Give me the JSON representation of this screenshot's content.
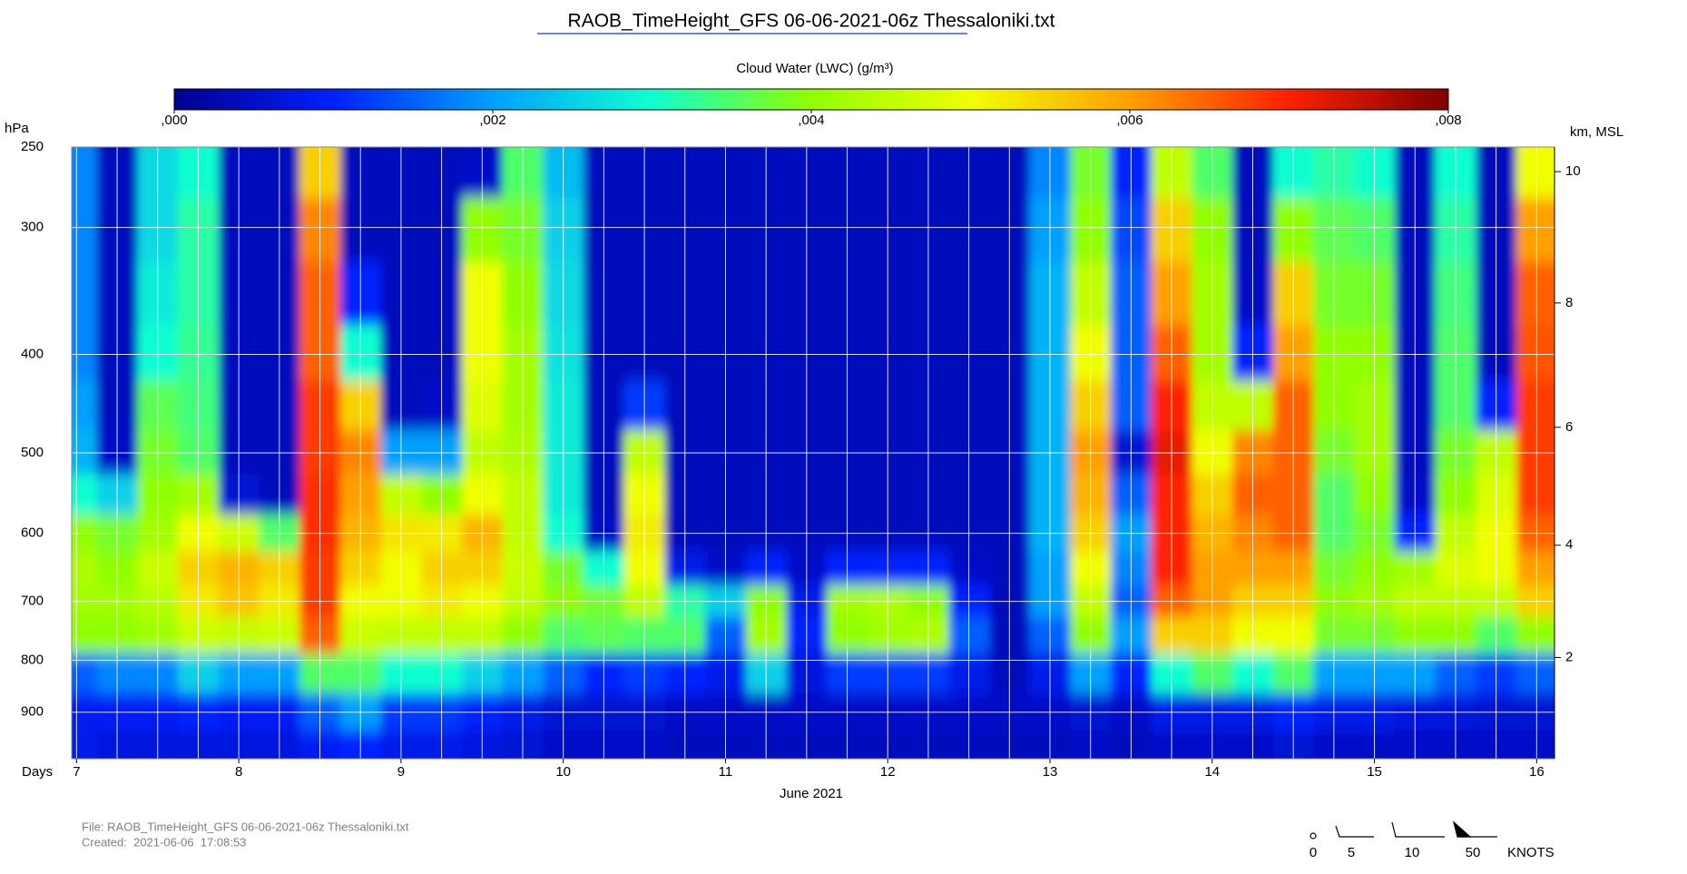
{
  "chart_data": {
    "type": "heatmap",
    "title": "RAOB_TimeHeight_GFS 06-06-2021-06z Thessaloniki.txt",
    "colorbar_label": "Cloud Water (LWC) (g/m³)",
    "clim": [
      0,
      0.008
    ],
    "cticks": [
      {
        "value": 0,
        "label": ",000"
      },
      {
        "value": 0.002,
        "label": ",002"
      },
      {
        "value": 0.004,
        "label": ",004"
      },
      {
        "value": 0.006,
        "label": ",006"
      },
      {
        "value": 0.008,
        "label": ",008"
      }
    ],
    "colormap": [
      "#00008f",
      "#0020ff",
      "#00a0ff",
      "#10ffd0",
      "#90ff00",
      "#f0ff00",
      "#ffa000",
      "#ff2000",
      "#800000"
    ],
    "ylabel": "hPa",
    "y_log": true,
    "ylim": [
      250,
      1000
    ],
    "yticks": [
      250,
      300,
      400,
      500,
      600,
      700,
      800,
      900
    ],
    "y2label": "km, MSL",
    "y2ticks": [
      2,
      4,
      6,
      8,
      10
    ],
    "xlabel": "Days",
    "xsublabel": "June 2021",
    "xlim": [
      6.97,
      16.11
    ],
    "xticks": [
      7,
      8,
      9,
      10,
      11,
      12,
      13,
      14,
      15,
      16
    ],
    "grid": true,
    "x": [
      7,
      7.25,
      7.5,
      7.75,
      8,
      8.25,
      8.5,
      8.75,
      9,
      9.25,
      9.5,
      9.75,
      10,
      10.25,
      10.5,
      10.75,
      11,
      11.25,
      11.5,
      11.75,
      12,
      12.25,
      12.5,
      12.75,
      13,
      13.25,
      13.5,
      13.75,
      14,
      14.25,
      14.5,
      14.75,
      15,
      15.25,
      15.5,
      15.75,
      16
    ],
    "y": [
      975,
      900,
      825,
      750,
      700,
      650,
      600,
      550,
      500,
      450,
      400,
      350,
      300,
      262
    ],
    "z": [
      [
        0.0008,
        0.0009,
        0.0015,
        0.004,
        0.0042,
        0.0043,
        0.004,
        0.003,
        0.0022,
        0.002,
        0.0018,
        0.0018,
        0.0018,
        0.0018
      ],
      [
        0.0007,
        0.0009,
        0.0018,
        0.004,
        0.0042,
        0.004,
        0.0038,
        0.0025,
        0.0005,
        0.0004,
        0.0004,
        0.0004,
        0.0004,
        0.0004
      ],
      [
        0.0007,
        0.0009,
        0.0018,
        0.0042,
        0.0044,
        0.0046,
        0.0042,
        0.004,
        0.0038,
        0.0036,
        0.003,
        0.0028,
        0.0026,
        0.0026
      ],
      [
        0.0007,
        0.001,
        0.0025,
        0.0046,
        0.0052,
        0.0055,
        0.005,
        0.0042,
        0.0035,
        0.0034,
        0.0033,
        0.0032,
        0.0032,
        0.003
      ],
      [
        0.0007,
        0.0009,
        0.002,
        0.0045,
        0.0056,
        0.0058,
        0.0046,
        0.0006,
        0.0004,
        0.0004,
        0.0004,
        0.0004,
        0.0004,
        0.0004
      ],
      [
        0.0007,
        0.0009,
        0.002,
        0.0046,
        0.0052,
        0.0055,
        0.0035,
        0.0004,
        0.0004,
        0.0004,
        0.0004,
        0.0004,
        0.0004,
        0.0004
      ],
      [
        0.0009,
        0.0015,
        0.0035,
        0.0065,
        0.0068,
        0.0068,
        0.0069,
        0.0069,
        0.0068,
        0.0068,
        0.0065,
        0.0065,
        0.0062,
        0.0055
      ],
      [
        0.001,
        0.002,
        0.0035,
        0.0046,
        0.005,
        0.0055,
        0.0058,
        0.006,
        0.0062,
        0.0055,
        0.003,
        0.001,
        0.0004,
        0.0004
      ],
      [
        0.0008,
        0.0012,
        0.003,
        0.0045,
        0.005,
        0.005,
        0.0053,
        0.0045,
        0.002,
        0.0004,
        0.0004,
        0.0004,
        0.0004,
        0.0004
      ],
      [
        0.0008,
        0.0012,
        0.003,
        0.0045,
        0.0052,
        0.0055,
        0.0052,
        0.004,
        0.002,
        0.0005,
        0.0004,
        0.0004,
        0.0004,
        0.0004
      ],
      [
        0.0007,
        0.001,
        0.0025,
        0.0045,
        0.005,
        0.0055,
        0.0058,
        0.005,
        0.0045,
        0.0048,
        0.005,
        0.005,
        0.004,
        0.0005
      ],
      [
        0.0006,
        0.0008,
        0.002,
        0.004,
        0.0045,
        0.0046,
        0.0045,
        0.0045,
        0.0043,
        0.0042,
        0.0042,
        0.004,
        0.0038,
        0.0035
      ],
      [
        0.0005,
        0.0006,
        0.0015,
        0.0035,
        0.004,
        0.0038,
        0.003,
        0.0028,
        0.0028,
        0.0028,
        0.0027,
        0.0026,
        0.0025,
        0.0023
      ],
      [
        0.0005,
        0.0006,
        0.001,
        0.0036,
        0.0038,
        0.003,
        0.0005,
        0.0004,
        0.0004,
        0.0004,
        0.0004,
        0.0004,
        0.0004,
        0.0004
      ],
      [
        0.0005,
        0.0006,
        0.0012,
        0.0035,
        0.0045,
        0.005,
        0.0052,
        0.005,
        0.0045,
        0.0012,
        0.0004,
        0.0004,
        0.0004,
        0.0004
      ],
      [
        0.0004,
        0.0005,
        0.001,
        0.0035,
        0.0032,
        0.0008,
        0.0004,
        0.0004,
        0.0004,
        0.0004,
        0.0004,
        0.0004,
        0.0004,
        0.0004
      ],
      [
        0.0004,
        0.0005,
        0.0008,
        0.0015,
        0.0025,
        0.0005,
        0.0004,
        0.0004,
        0.0004,
        0.0004,
        0.0004,
        0.0004,
        0.0004,
        0.0004
      ],
      [
        0.0004,
        0.0005,
        0.0025,
        0.0042,
        0.004,
        0.001,
        0.0004,
        0.0004,
        0.0004,
        0.0004,
        0.0004,
        0.0004,
        0.0004,
        0.0004
      ],
      [
        0.0004,
        0.0005,
        0.0007,
        0.001,
        0.0008,
        0.0005,
        0.0004,
        0.0004,
        0.0004,
        0.0004,
        0.0004,
        0.0004,
        0.0004,
        0.0004
      ],
      [
        0.0004,
        0.0005,
        0.0012,
        0.004,
        0.0042,
        0.001,
        0.0004,
        0.0004,
        0.0004,
        0.0004,
        0.0004,
        0.0004,
        0.0004,
        0.0004
      ],
      [
        0.0004,
        0.0005,
        0.0012,
        0.0042,
        0.0043,
        0.001,
        0.0004,
        0.0004,
        0.0004,
        0.0004,
        0.0004,
        0.0004,
        0.0004,
        0.0004
      ],
      [
        0.0004,
        0.0005,
        0.0012,
        0.0043,
        0.004,
        0.001,
        0.0004,
        0.0004,
        0.0004,
        0.0004,
        0.0004,
        0.0004,
        0.0004,
        0.0004
      ],
      [
        0.0004,
        0.0005,
        0.0008,
        0.0015,
        0.001,
        0.0005,
        0.0004,
        0.0004,
        0.0004,
        0.0004,
        0.0004,
        0.0004,
        0.0004,
        0.0004
      ],
      [
        0.0004,
        0.0005,
        0.0004,
        0.0004,
        0.0004,
        0.0004,
        0.0004,
        0.0004,
        0.0004,
        0.0004,
        0.0004,
        0.0004,
        0.0004,
        0.0004
      ],
      [
        0.0004,
        0.0005,
        0.0008,
        0.0015,
        0.002,
        0.002,
        0.0022,
        0.0022,
        0.0022,
        0.0022,
        0.0022,
        0.0022,
        0.002,
        0.0018
      ],
      [
        0.0005,
        0.0006,
        0.002,
        0.004,
        0.0045,
        0.005,
        0.0055,
        0.0058,
        0.006,
        0.0055,
        0.005,
        0.0045,
        0.004,
        0.0038
      ],
      [
        0.0004,
        0.0005,
        0.001,
        0.002,
        0.0015,
        0.0018,
        0.002,
        0.0015,
        0.0006,
        0.0015,
        0.0015,
        0.0015,
        0.0013,
        0.001
      ],
      [
        0.0005,
        0.0008,
        0.003,
        0.0055,
        0.0065,
        0.007,
        0.007,
        0.007,
        0.0072,
        0.007,
        0.0065,
        0.006,
        0.0055,
        0.0045
      ],
      [
        0.0005,
        0.0008,
        0.0035,
        0.0055,
        0.006,
        0.006,
        0.0058,
        0.0055,
        0.005,
        0.0045,
        0.0042,
        0.0042,
        0.004,
        0.0035
      ],
      [
        0.0005,
        0.0008,
        0.003,
        0.005,
        0.0055,
        0.006,
        0.0062,
        0.0065,
        0.0062,
        0.0045,
        0.001,
        0.0005,
        0.0004,
        0.0004
      ],
      [
        0.0006,
        0.001,
        0.0035,
        0.005,
        0.0055,
        0.006,
        0.0065,
        0.0065,
        0.0065,
        0.0065,
        0.006,
        0.0055,
        0.004,
        0.003
      ],
      [
        0.0005,
        0.0008,
        0.002,
        0.0038,
        0.004,
        0.0038,
        0.0035,
        0.0035,
        0.0038,
        0.004,
        0.004,
        0.0038,
        0.0036,
        0.0032
      ],
      [
        0.0005,
        0.0008,
        0.002,
        0.0038,
        0.0042,
        0.004,
        0.0038,
        0.004,
        0.0042,
        0.0042,
        0.004,
        0.0038,
        0.0035,
        0.003
      ],
      [
        0.0005,
        0.0007,
        0.002,
        0.004,
        0.0045,
        0.0042,
        0.001,
        0.0005,
        0.0004,
        0.0004,
        0.0004,
        0.0004,
        0.0004,
        0.0004
      ],
      [
        0.0005,
        0.0007,
        0.0015,
        0.004,
        0.0045,
        0.0048,
        0.0045,
        0.004,
        0.0038,
        0.0035,
        0.0035,
        0.0034,
        0.0032,
        0.003
      ],
      [
        0.0005,
        0.0006,
        0.0012,
        0.0035,
        0.0045,
        0.005,
        0.005,
        0.0048,
        0.0045,
        0.001,
        0.0004,
        0.0004,
        0.0004,
        0.0004
      ],
      [
        0.0005,
        0.0006,
        0.0015,
        0.004,
        0.0055,
        0.006,
        0.0065,
        0.0068,
        0.0068,
        0.0068,
        0.0066,
        0.0065,
        0.006,
        0.005
      ]
    ],
    "notes": [
      "File: RAOB_TimeHeight_GFS 06-06-2021-06z Thessaloniki.txt",
      "Created:  2021-06-06  17:08:53"
    ],
    "barb_legend": {
      "speeds": [
        0,
        5,
        10,
        50
      ],
      "unit": "KNOTS"
    }
  }
}
